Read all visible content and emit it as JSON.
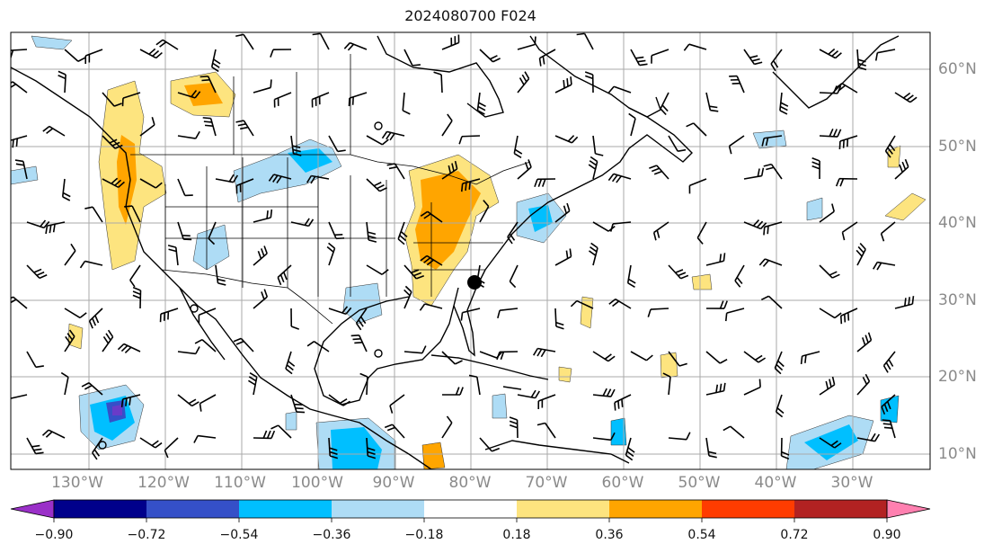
{
  "title": "2024080700 F024",
  "lon_labels": [
    "130°W",
    "120°W",
    "110°W",
    "100°W",
    "90°W",
    "80°W",
    "70°W",
    "60°W",
    "50°W",
    "40°W",
    "30°W"
  ],
  "lat_labels": [
    "60°N",
    "50°N",
    "40°N",
    "30°N",
    "20°N",
    "10°N"
  ],
  "colorbar": {
    "ticks": [
      "−0.90",
      "−0.72",
      "−0.54",
      "−0.36",
      "−0.18",
      "0.18",
      "0.36",
      "0.54",
      "0.72",
      "0.90"
    ],
    "colors": [
      "#9a30c8",
      "#00008b",
      "#3550c8",
      "#00bfff",
      "#aedcf5",
      "#ffffff",
      "#fde47f",
      "#ffa500",
      "#ff3c00",
      "#b22222",
      "#ff80b0"
    ]
  },
  "colors": {
    "land_outline": "#000000",
    "gridline": "#aaaaaa",
    "warm_light": "#fde47f",
    "warm_mid": "#ffa500",
    "cool_light": "#aedcf5",
    "cool_mid": "#00bfff",
    "cool_dark": "#3550c8",
    "purple": "#6a3bc8"
  },
  "icons": [
    "wind-barb-icon",
    "storm-center-marker-icon"
  ]
}
